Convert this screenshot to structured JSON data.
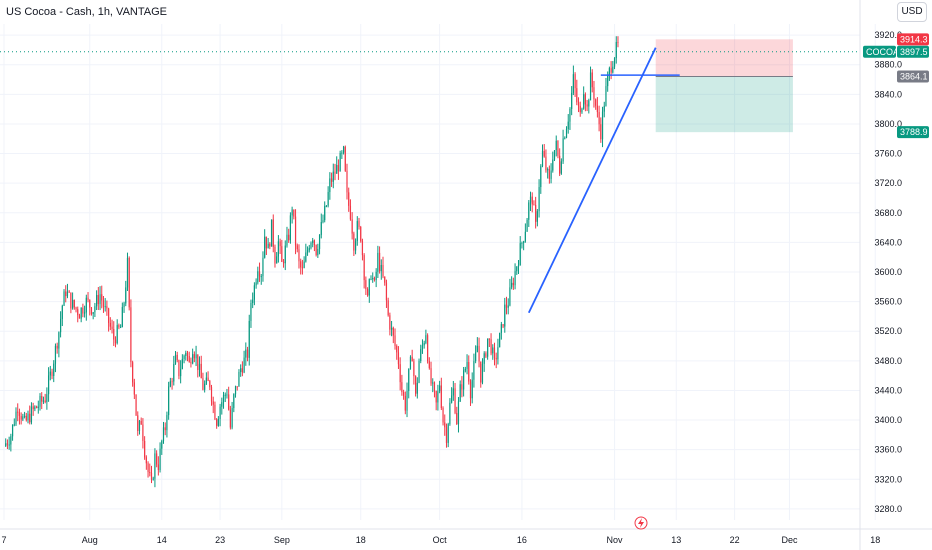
{
  "header": {
    "title": "US Cocoa - Cash, 1h, VANTAGE",
    "currency": "USD"
  },
  "price_tags": {
    "symbol": "COCOA",
    "last": "3897.5",
    "stop": "3914.3",
    "entry": "3864.1",
    "target": "3788.9"
  },
  "colors": {
    "up": "#089981",
    "down": "#f23645",
    "trendline": "#2962ff",
    "stop_zone": "rgba(242,54,69,0.2)",
    "target_zone": "rgba(8,153,129,0.2)"
  },
  "icons": {
    "flash": "lightning-bolt-icon"
  },
  "chart_data": {
    "type": "candlestick",
    "title": "US Cocoa - Cash, 1h, VANTAGE",
    "ylim": [
      3265,
      3935
    ],
    "y_ticks": [
      3280,
      3320,
      3360,
      3400,
      3440,
      3480,
      3520,
      3560,
      3600,
      3640,
      3680,
      3720,
      3760,
      3800,
      3840,
      3880,
      3920
    ],
    "y_tick_labels": [
      "3280.0",
      "3320.0",
      "3360.0",
      "3400.0",
      "3440.0",
      "3480.0",
      "3520.0",
      "3560.0",
      "3600.0",
      "3640.0",
      "3680.0",
      "3720.0",
      "3760.0",
      "3800.0",
      "3840.0",
      "3880.0",
      "3920.0"
    ],
    "x_labels": [
      {
        "label": "7",
        "day": 0
      },
      {
        "label": "Aug",
        "day": 25
      },
      {
        "label": "14",
        "day": 46
      },
      {
        "label": "23",
        "day": 63
      },
      {
        "label": "Sep",
        "day": 81
      },
      {
        "label": "18",
        "day": 104
      },
      {
        "label": "Oct",
        "day": 127
      },
      {
        "label": "16",
        "day": 151
      },
      {
        "label": "Nov",
        "day": 178
      },
      {
        "label": "13",
        "day": 196
      },
      {
        "label": "22",
        "day": 213
      },
      {
        "label": "Dec",
        "day": 229
      },
      {
        "label": "18",
        "day": 254
      }
    ],
    "price_path": [
      [
        0,
        3365
      ],
      [
        2,
        3380
      ],
      [
        4,
        3420
      ],
      [
        6,
        3395
      ],
      [
        8,
        3410
      ],
      [
        10,
        3420
      ],
      [
        12,
        3430
      ],
      [
        14,
        3470
      ],
      [
        16,
        3520
      ],
      [
        17,
        3555
      ],
      [
        18,
        3575
      ],
      [
        20,
        3555
      ],
      [
        22,
        3545
      ],
      [
        24,
        3560
      ],
      [
        26,
        3550
      ],
      [
        28,
        3570
      ],
      [
        30,
        3540
      ],
      [
        32,
        3510
      ],
      [
        34,
        3525
      ],
      [
        35,
        3560
      ],
      [
        36,
        3610
      ],
      [
        37,
        3480
      ],
      [
        38,
        3440
      ],
      [
        39,
        3380
      ],
      [
        40,
        3400
      ],
      [
        41,
        3360
      ],
      [
        42,
        3330
      ],
      [
        43,
        3310
      ],
      [
        44,
        3350
      ],
      [
        45,
        3340
      ],
      [
        46,
        3370
      ],
      [
        47,
        3390
      ],
      [
        48,
        3440
      ],
      [
        49,
        3460
      ],
      [
        50,
        3480
      ],
      [
        51,
        3465
      ],
      [
        52,
        3480
      ],
      [
        53,
        3495
      ],
      [
        54,
        3475
      ],
      [
        55,
        3500
      ],
      [
        56,
        3485
      ],
      [
        57,
        3465
      ],
      [
        58,
        3445
      ],
      [
        60,
        3450
      ],
      [
        61,
        3420
      ],
      [
        62,
        3400
      ],
      [
        63,
        3420
      ],
      [
        65,
        3440
      ],
      [
        66,
        3390
      ],
      [
        67,
        3430
      ],
      [
        69,
        3470
      ],
      [
        71,
        3490
      ],
      [
        72,
        3560
      ],
      [
        73,
        3580
      ],
      [
        74,
        3610
      ],
      [
        75,
        3600
      ],
      [
        76,
        3650
      ],
      [
        77,
        3630
      ],
      [
        78,
        3660
      ],
      [
        79,
        3620
      ],
      [
        80,
        3640
      ],
      [
        81,
        3610
      ],
      [
        83,
        3650
      ],
      [
        84,
        3690
      ],
      [
        85,
        3640
      ],
      [
        86,
        3610
      ],
      [
        87,
        3600
      ],
      [
        89,
        3640
      ],
      [
        90,
        3650
      ],
      [
        91,
        3630
      ],
      [
        92,
        3650
      ],
      [
        93,
        3670
      ],
      [
        94,
        3690
      ],
      [
        95,
        3720
      ],
      [
        97,
        3740
      ],
      [
        99,
        3760
      ],
      [
        100,
        3700
      ],
      [
        101,
        3680
      ],
      [
        102,
        3640
      ],
      [
        103,
        3660
      ],
      [
        104,
        3650
      ],
      [
        105,
        3600
      ],
      [
        106,
        3560
      ],
      [
        107,
        3600
      ],
      [
        108,
        3580
      ],
      [
        109,
        3620
      ],
      [
        110,
        3600
      ],
      [
        111,
        3580
      ],
      [
        112,
        3540
      ],
      [
        113,
        3520
      ],
      [
        114,
        3500
      ],
      [
        115,
        3480
      ],
      [
        116,
        3440
      ],
      [
        117,
        3420
      ],
      [
        118,
        3460
      ],
      [
        119,
        3490
      ],
      [
        120,
        3430
      ],
      [
        121,
        3480
      ],
      [
        122,
        3500
      ],
      [
        123,
        3520
      ],
      [
        124,
        3460
      ],
      [
        125,
        3440
      ],
      [
        126,
        3420
      ],
      [
        127,
        3450
      ],
      [
        128,
        3400
      ],
      [
        129,
        3380
      ],
      [
        130,
        3420
      ],
      [
        131,
        3440
      ],
      [
        132,
        3400
      ],
      [
        133,
        3440
      ],
      [
        134,
        3460
      ],
      [
        135,
        3480
      ],
      [
        136,
        3440
      ],
      [
        137,
        3470
      ],
      [
        138,
        3500
      ],
      [
        139,
        3460
      ],
      [
        140,
        3480
      ],
      [
        141,
        3510
      ],
      [
        142,
        3500
      ],
      [
        143,
        3475
      ],
      [
        144,
        3500
      ],
      [
        145,
        3520
      ],
      [
        146,
        3550
      ],
      [
        147,
        3560
      ],
      [
        148,
        3580
      ],
      [
        149,
        3600
      ],
      [
        150,
        3620
      ],
      [
        151,
        3640
      ],
      [
        152,
        3660
      ],
      [
        153,
        3690
      ],
      [
        154,
        3700
      ],
      [
        155,
        3660
      ],
      [
        156,
        3720
      ],
      [
        157,
        3760
      ],
      [
        158,
        3740
      ],
      [
        159,
        3720
      ],
      [
        160,
        3760
      ],
      [
        161,
        3770
      ],
      [
        162,
        3740
      ],
      [
        163,
        3780
      ],
      [
        164,
        3800
      ],
      [
        165,
        3820
      ],
      [
        166,
        3860
      ],
      [
        167,
        3830
      ],
      [
        168,
        3810
      ],
      [
        169,
        3850
      ],
      [
        170,
        3820
      ],
      [
        171,
        3860
      ],
      [
        172,
        3840
      ],
      [
        173,
        3810
      ],
      [
        174,
        3790
      ],
      [
        175,
        3830
      ],
      [
        176,
        3860
      ],
      [
        177,
        3880
      ],
      [
        178,
        3895
      ],
      [
        179,
        3905
      ]
    ],
    "price_path_columns": [
      "day",
      "price"
    ],
    "trendline": {
      "start": [
        153,
        3545
      ],
      "end": [
        190,
        3903
      ]
    },
    "resistance_line": {
      "start": [
        174,
        3866
      ],
      "end": [
        197,
        3866
      ]
    },
    "position": {
      "start_day": 190,
      "end_day": 230,
      "stop": 3914.3,
      "entry": 3864.1,
      "target": 3788.9
    },
    "last_price": 3897.5
  }
}
